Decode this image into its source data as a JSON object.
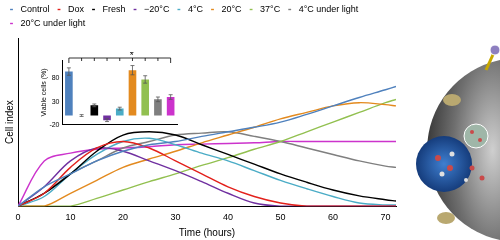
{
  "chart_data": [
    {
      "type": "line",
      "x_label": "Time (hours)",
      "y_label": "Cell index",
      "x": [
        0,
        5,
        10,
        15,
        20,
        25,
        30,
        35,
        40,
        45,
        50,
        55,
        60,
        65,
        70,
        72
      ],
      "series": [
        {
          "name": "Control",
          "color": "#4f81bd",
          "values": [
            0,
            0.3,
            0.5,
            0.7,
            0.85,
            0.95,
            1.0,
            1.08,
            1.15,
            1.22,
            1.3,
            1.42,
            1.55,
            1.68,
            1.8,
            1.85
          ]
        },
        {
          "name": "Dox",
          "color": "#e3211c",
          "values": [
            0,
            0.2,
            0.6,
            0.9,
            1.0,
            0.9,
            0.7,
            0.5,
            0.3,
            0.15,
            0.05,
            0,
            0,
            0,
            0,
            0
          ]
        },
        {
          "name": "Fresh",
          "color": "#000000",
          "values": [
            0,
            0.2,
            0.5,
            0.85,
            1.1,
            1.15,
            1.1,
            0.95,
            0.8,
            0.65,
            0.5,
            0.37,
            0.25,
            0.16,
            0.1,
            0.08
          ]
        },
        {
          "name": "−20°C",
          "color": "#7030a0",
          "values": [
            0,
            0.3,
            0.7,
            0.9,
            0.85,
            0.7,
            0.55,
            0.38,
            0.2,
            0.05,
            0,
            0,
            0,
            0,
            0,
            0
          ]
        },
        {
          "name": "4°C",
          "color": "#4bacc6",
          "values": [
            0,
            0.15,
            0.5,
            0.8,
            1.0,
            1.05,
            0.95,
            0.82,
            0.7,
            0.55,
            0.4,
            0.27,
            0.15,
            0.05,
            0.02,
            0.02
          ]
        },
        {
          "name": "20°C",
          "color": "#e38a1f",
          "values": [
            0,
            0,
            0.2,
            0.4,
            0.6,
            0.73,
            0.85,
            0.98,
            1.1,
            1.22,
            1.35,
            1.45,
            1.55,
            1.6,
            1.57,
            1.55
          ]
        },
        {
          "name": "37°C",
          "color": "#92c050",
          "values": [
            0,
            0,
            0,
            0.12,
            0.25,
            0.38,
            0.5,
            0.63,
            0.75,
            0.88,
            1.0,
            1.15,
            1.3,
            1.45,
            1.6,
            1.65
          ]
        },
        {
          "name": "4°C under light",
          "color": "#7f7f7f",
          "values": [
            0,
            0.2,
            0.5,
            0.7,
            0.9,
            1.0,
            1.1,
            1.13,
            1.15,
            1.08,
            1.0,
            0.9,
            0.8,
            0.7,
            0.62,
            0.6
          ]
        },
        {
          "name": "20°C under light",
          "color": "#cc33cc",
          "values": [
            0,
            0.7,
            0.82,
            0.88,
            0.9,
            0.92,
            0.95,
            0.96,
            0.97,
            0.98,
            1.0,
            1.0,
            1.0,
            1.0,
            1.0,
            1.0
          ]
        }
      ],
      "xlim": [
        0,
        72
      ],
      "xticks": [
        0,
        10,
        20,
        30,
        40,
        50,
        60,
        70
      ],
      "ylim": [
        0,
        2.6
      ],
      "tick_labels": "x",
      "grid": false,
      "legend": "top"
    },
    {
      "type": "bar",
      "y_label": "Viable cells (%)",
      "categories": [
        null,
        null,
        null,
        null,
        null,
        null,
        null,
        null,
        null
      ],
      "values": [
        95,
        0,
        22,
        -10,
        15,
        98,
        78,
        35,
        40
      ],
      "errors": [
        8,
        2,
        3,
        3,
        3,
        10,
        8,
        5,
        5
      ],
      "colors": [
        "#4f81bd",
        "#e3211c",
        "#000000",
        "#7030a0",
        "#4bacc6",
        "#e38a1f",
        "#92c050",
        "#7f7f7f",
        "#cc33cc"
      ],
      "ylim": [
        -20,
        120
      ],
      "yticks": [
        -20,
        30,
        80
      ],
      "tick_labels": "y",
      "grid": false,
      "annotations": [
        "*"
      ]
    }
  ]
}
